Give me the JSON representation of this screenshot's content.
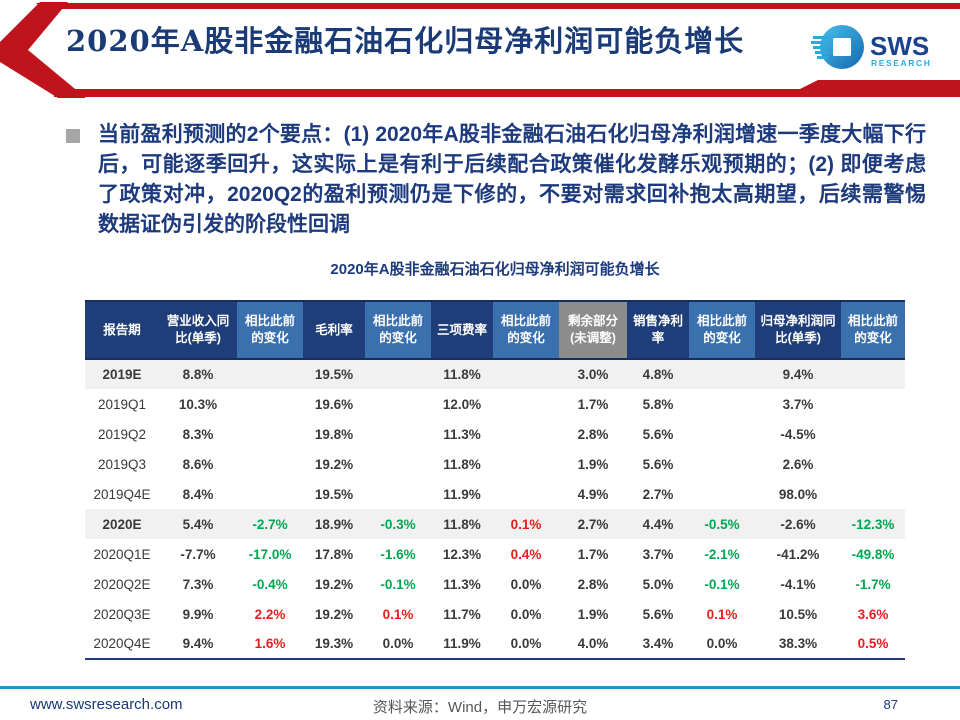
{
  "header": {
    "title": "2020年A股非金融石油石化归母净利润可能负增长",
    "logo": {
      "text": "SWS",
      "subtext": "RESEARCH"
    },
    "accent_red": "#c0141c",
    "title_color": "#1b3b76"
  },
  "main": {
    "bullet_text": "当前盈利预测的2个要点：(1) 2020年A股非金融石油石化归母净利润增速一季度大幅下行后，可能逐季回升，这实际上是有利于后续配合政策催化发酵乐观预期的；(2) 即便考虑了政策对冲，2020Q2的盈利预测仍是下修的，不要对需求回补抱太高期望，后续需警惕数据证伪引发的阶段性回调",
    "table_title": "2020年A股非金融石油石化归母净利润可能负增长"
  },
  "table": {
    "header_colors": {
      "navy": "#1f3e79",
      "blue": "#3a70ae",
      "gray": "#8c8c8c"
    },
    "value_colors": {
      "dark": "#3a3a3a",
      "green": "#00a650",
      "red": "#ea1c1c"
    },
    "columns": [
      {
        "label": "报告期",
        "tone": "navy"
      },
      {
        "label": "营业收入同比(单季)",
        "tone": "navy"
      },
      {
        "label": "相比此前的变化",
        "tone": "blue"
      },
      {
        "label": "毛利率",
        "tone": "navy"
      },
      {
        "label": "相比此前的变化",
        "tone": "blue"
      },
      {
        "label": "三项费率",
        "tone": "navy"
      },
      {
        "label": "相比此前的变化",
        "tone": "blue"
      },
      {
        "label": "剩余部分(未调整)",
        "tone": "gray"
      },
      {
        "label": "销售净利率",
        "tone": "navy"
      },
      {
        "label": "相比此前的变化",
        "tone": "blue"
      },
      {
        "label": "归母净利润同比(单季)",
        "tone": "navy"
      },
      {
        "label": "相比此前的变化",
        "tone": "blue"
      }
    ],
    "rows": [
      {
        "period": "2019E",
        "bold": true,
        "shaded": true,
        "cells": [
          {
            "t": "8.8%"
          },
          {
            "t": ""
          },
          {
            "t": "19.5%"
          },
          {
            "t": ""
          },
          {
            "t": "11.8%"
          },
          {
            "t": ""
          },
          {
            "t": "3.0%"
          },
          {
            "t": "4.8%"
          },
          {
            "t": ""
          },
          {
            "t": "9.4%"
          },
          {
            "t": ""
          }
        ]
      },
      {
        "period": "2019Q1",
        "cells": [
          {
            "t": "10.3%"
          },
          {
            "t": ""
          },
          {
            "t": "19.6%"
          },
          {
            "t": ""
          },
          {
            "t": "12.0%"
          },
          {
            "t": ""
          },
          {
            "t": "1.7%"
          },
          {
            "t": "5.8%"
          },
          {
            "t": ""
          },
          {
            "t": "3.7%"
          },
          {
            "t": ""
          }
        ]
      },
      {
        "period": "2019Q2",
        "cells": [
          {
            "t": "8.3%"
          },
          {
            "t": ""
          },
          {
            "t": "19.8%"
          },
          {
            "t": ""
          },
          {
            "t": "11.3%"
          },
          {
            "t": ""
          },
          {
            "t": "2.8%"
          },
          {
            "t": "5.6%"
          },
          {
            "t": ""
          },
          {
            "t": "-4.5%"
          },
          {
            "t": ""
          }
        ]
      },
      {
        "period": "2019Q3",
        "cells": [
          {
            "t": "8.6%"
          },
          {
            "t": ""
          },
          {
            "t": "19.2%"
          },
          {
            "t": ""
          },
          {
            "t": "11.8%"
          },
          {
            "t": ""
          },
          {
            "t": "1.9%"
          },
          {
            "t": "5.6%"
          },
          {
            "t": ""
          },
          {
            "t": "2.6%"
          },
          {
            "t": ""
          }
        ]
      },
      {
        "period": "2019Q4E",
        "cells": [
          {
            "t": "8.4%"
          },
          {
            "t": ""
          },
          {
            "t": "19.5%"
          },
          {
            "t": ""
          },
          {
            "t": "11.9%"
          },
          {
            "t": ""
          },
          {
            "t": "4.9%"
          },
          {
            "t": "2.7%"
          },
          {
            "t": ""
          },
          {
            "t": "98.0%"
          },
          {
            "t": ""
          }
        ]
      },
      {
        "period": "2020E",
        "bold": true,
        "shaded": true,
        "cells": [
          {
            "t": "5.4%"
          },
          {
            "t": "-2.7%",
            "c": "green"
          },
          {
            "t": "18.9%"
          },
          {
            "t": "-0.3%",
            "c": "green"
          },
          {
            "t": "11.8%"
          },
          {
            "t": "0.1%",
            "c": "red"
          },
          {
            "t": "2.7%"
          },
          {
            "t": "4.4%"
          },
          {
            "t": "-0.5%",
            "c": "green"
          },
          {
            "t": "-2.6%"
          },
          {
            "t": "-12.3%",
            "c": "green"
          }
        ]
      },
      {
        "period": "2020Q1E",
        "cells": [
          {
            "t": "-7.7%"
          },
          {
            "t": "-17.0%",
            "c": "green"
          },
          {
            "t": "17.8%"
          },
          {
            "t": "-1.6%",
            "c": "green"
          },
          {
            "t": "12.3%"
          },
          {
            "t": "0.4%",
            "c": "red"
          },
          {
            "t": "1.7%"
          },
          {
            "t": "3.7%"
          },
          {
            "t": "-2.1%",
            "c": "green"
          },
          {
            "t": "-41.2%"
          },
          {
            "t": "-49.8%",
            "c": "green"
          }
        ]
      },
      {
        "period": "2020Q2E",
        "cells": [
          {
            "t": "7.3%"
          },
          {
            "t": "-0.4%",
            "c": "green"
          },
          {
            "t": "19.2%"
          },
          {
            "t": "-0.1%",
            "c": "green"
          },
          {
            "t": "11.3%"
          },
          {
            "t": "0.0%"
          },
          {
            "t": "2.8%"
          },
          {
            "t": "5.0%"
          },
          {
            "t": "-0.1%",
            "c": "green"
          },
          {
            "t": "-4.1%"
          },
          {
            "t": "-1.7%",
            "c": "green"
          }
        ]
      },
      {
        "period": "2020Q3E",
        "cells": [
          {
            "t": "9.9%"
          },
          {
            "t": "2.2%",
            "c": "red"
          },
          {
            "t": "19.2%"
          },
          {
            "t": "0.1%",
            "c": "red"
          },
          {
            "t": "11.7%"
          },
          {
            "t": "0.0%"
          },
          {
            "t": "1.9%"
          },
          {
            "t": "5.6%"
          },
          {
            "t": "0.1%",
            "c": "red"
          },
          {
            "t": "10.5%"
          },
          {
            "t": "3.6%",
            "c": "red"
          }
        ]
      },
      {
        "period": "2020Q4E",
        "cells": [
          {
            "t": "9.4%"
          },
          {
            "t": "1.6%",
            "c": "red"
          },
          {
            "t": "19.3%"
          },
          {
            "t": "0.0%"
          },
          {
            "t": "11.9%"
          },
          {
            "t": "0.0%"
          },
          {
            "t": "4.0%"
          },
          {
            "t": "3.4%"
          },
          {
            "t": "0.0%"
          },
          {
            "t": "38.3%"
          },
          {
            "t": "0.5%",
            "c": "red"
          }
        ]
      }
    ]
  },
  "footer": {
    "website": "www.swsresearch.com",
    "source": "资料来源：Wind，申万宏源研究",
    "page_number": "87"
  }
}
